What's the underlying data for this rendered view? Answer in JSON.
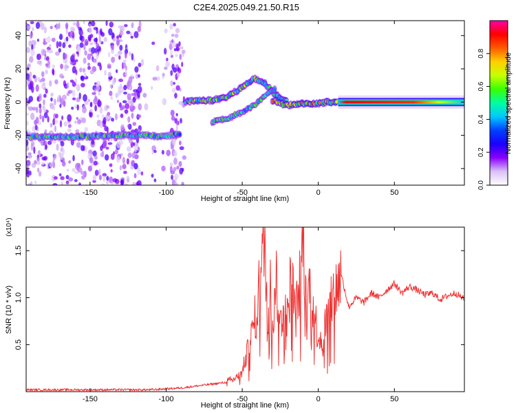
{
  "figure_title": "C2E4.2025.049.21.50.R15",
  "chart_data": [
    {
      "type": "heatmap",
      "xlabel": "Height of straight line (km)",
      "ylabel": "Frequency (Hz)",
      "xlim": [
        -192,
        96
      ],
      "ylim": [
        -50,
        49
      ],
      "x_ticks": [
        -150,
        -100,
        -50,
        0,
        50
      ],
      "y_ticks": [
        -40,
        -20,
        0,
        20,
        40
      ],
      "colorbar": {
        "label": "Normalized spectral amplitude",
        "range": [
          0.0,
          1.0
        ],
        "ticks": [
          "0.0",
          "0.2",
          "0.4",
          "0.6",
          "0.8"
        ],
        "colors": [
          "#ffffff",
          "#d9c2f5",
          "#8a00ff",
          "#1a00ff",
          "#0040ff",
          "#00c8ff",
          "#00ffa0",
          "#38ff00",
          "#c8ff00",
          "#ffd000",
          "#ff5a00",
          "#ff0000",
          "#ff00aa"
        ]
      },
      "features": [
        {
          "segment": "scattered noise",
          "x_range": [
            -192,
            -88
          ],
          "frequency_range": [
            -50,
            49
          ]
        },
        {
          "segment": "band at -20 Hz",
          "points": [
            [
              -190,
              -21
            ],
            [
              -160,
              -21
            ],
            [
              -130,
              -20
            ],
            [
              -110,
              -20
            ],
            [
              -105,
              -21
            ],
            [
              -90,
              -19
            ]
          ]
        },
        {
          "segment": "upper branch",
          "points": [
            [
              -87,
              0
            ],
            [
              -80,
              1
            ],
            [
              -70,
              1
            ],
            [
              -60,
              3
            ],
            [
              -50,
              9
            ],
            [
              -42,
              14
            ],
            [
              -36,
              12
            ],
            [
              -30,
              6
            ],
            [
              -25,
              3
            ],
            [
              -20,
              0
            ]
          ]
        },
        {
          "segment": "lower branch",
          "points": [
            [
              -70,
              -12
            ],
            [
              -60,
              -10
            ],
            [
              -50,
              -6
            ],
            [
              -42,
              -2
            ],
            [
              -36,
              3
            ],
            [
              -30,
              7
            ],
            [
              -28,
              8
            ]
          ]
        },
        {
          "segment": "band near 0 Hz",
          "points": [
            [
              -30,
              1
            ],
            [
              -20,
              -2
            ],
            [
              -10,
              -1
            ],
            [
              0,
              -1
            ],
            [
              5,
              0
            ],
            [
              13,
              0
            ]
          ]
        },
        {
          "segment": "straight band",
          "points": [
            [
              13,
              0
            ],
            [
              96,
              0
            ]
          ]
        }
      ]
    },
    {
      "type": "line",
      "xlabel": "Height of straight line (km)",
      "ylabel": "SNR (10 * v/v)",
      "y_multiplier": "(x10⁴)",
      "xlim": [
        -192,
        96
      ],
      "ylim": [
        0.0,
        1.75
      ],
      "x_ticks": [
        -150,
        -100,
        -50,
        0,
        50
      ],
      "y_ticks": [
        "0.5",
        "1.0",
        "1.5"
      ],
      "line_color": "#ee3333",
      "x": [
        -192,
        -170,
        -150,
        -130,
        -110,
        -100,
        -90,
        -80,
        -70,
        -60,
        -55,
        -50,
        -48,
        -45,
        -42,
        -40,
        -38,
        -35,
        -33,
        -32,
        -30,
        -28,
        -25,
        -22,
        -20,
        -18,
        -15,
        -12,
        -10,
        -8,
        -5,
        -3,
        0,
        3,
        5,
        8,
        10,
        12,
        15,
        20,
        25,
        30,
        35,
        40,
        45,
        50,
        55,
        60,
        65,
        70,
        75,
        80,
        85,
        90,
        96
      ],
      "y": [
        0.02,
        0.02,
        0.02,
        0.02,
        0.02,
        0.03,
        0.04,
        0.06,
        0.08,
        0.1,
        0.13,
        0.2,
        0.35,
        0.5,
        0.75,
        0.95,
        1.25,
        1.6,
        0.7,
        1.45,
        0.6,
        1.3,
        0.7,
        1.0,
        0.75,
        1.3,
        0.8,
        1.2,
        1.75,
        0.9,
        1.2,
        0.85,
        0.6,
        0.55,
        0.75,
        0.9,
        1.05,
        1.1,
        1.25,
        0.9,
        1.0,
        0.95,
        1.05,
        1.0,
        1.08,
        1.15,
        1.05,
        1.12,
        1.08,
        1.03,
        1.05,
        0.98,
        1.02,
        1.05,
        0.98
      ]
    }
  ]
}
